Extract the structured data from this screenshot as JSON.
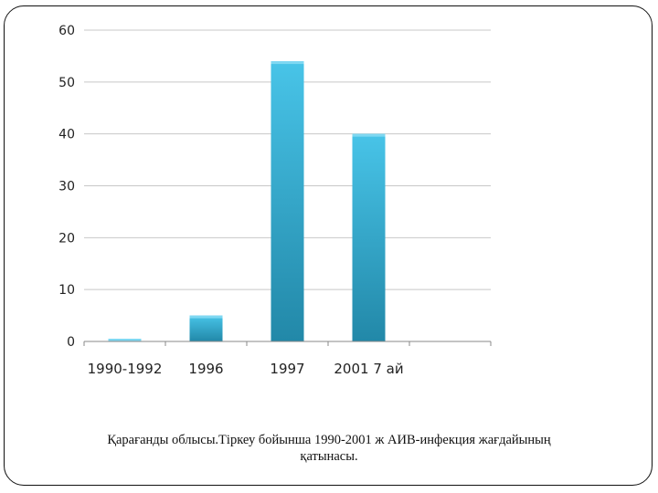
{
  "caption": {
    "line1": "Қарағанды облысы.Тіркеу бойынша 1990-2001 ж АИВ-инфекция жағдайының",
    "line2": "қатынасы."
  },
  "chart_data": {
    "type": "bar",
    "categories": [
      "1990-1992",
      "1996",
      "1997",
      "2001 7 ай"
    ],
    "values": [
      0.5,
      5,
      54,
      40
    ],
    "ylim": [
      0,
      60
    ],
    "yticks": [
      0,
      10,
      20,
      30,
      40,
      50,
      60
    ],
    "grid": true,
    "legend": "none",
    "colors": {
      "bar_light": "#48c4e8",
      "bar_dark": "#2288a8",
      "bar_top": "#7fd8f2",
      "grid": "#c8c8c8",
      "axis": "#888888"
    }
  }
}
